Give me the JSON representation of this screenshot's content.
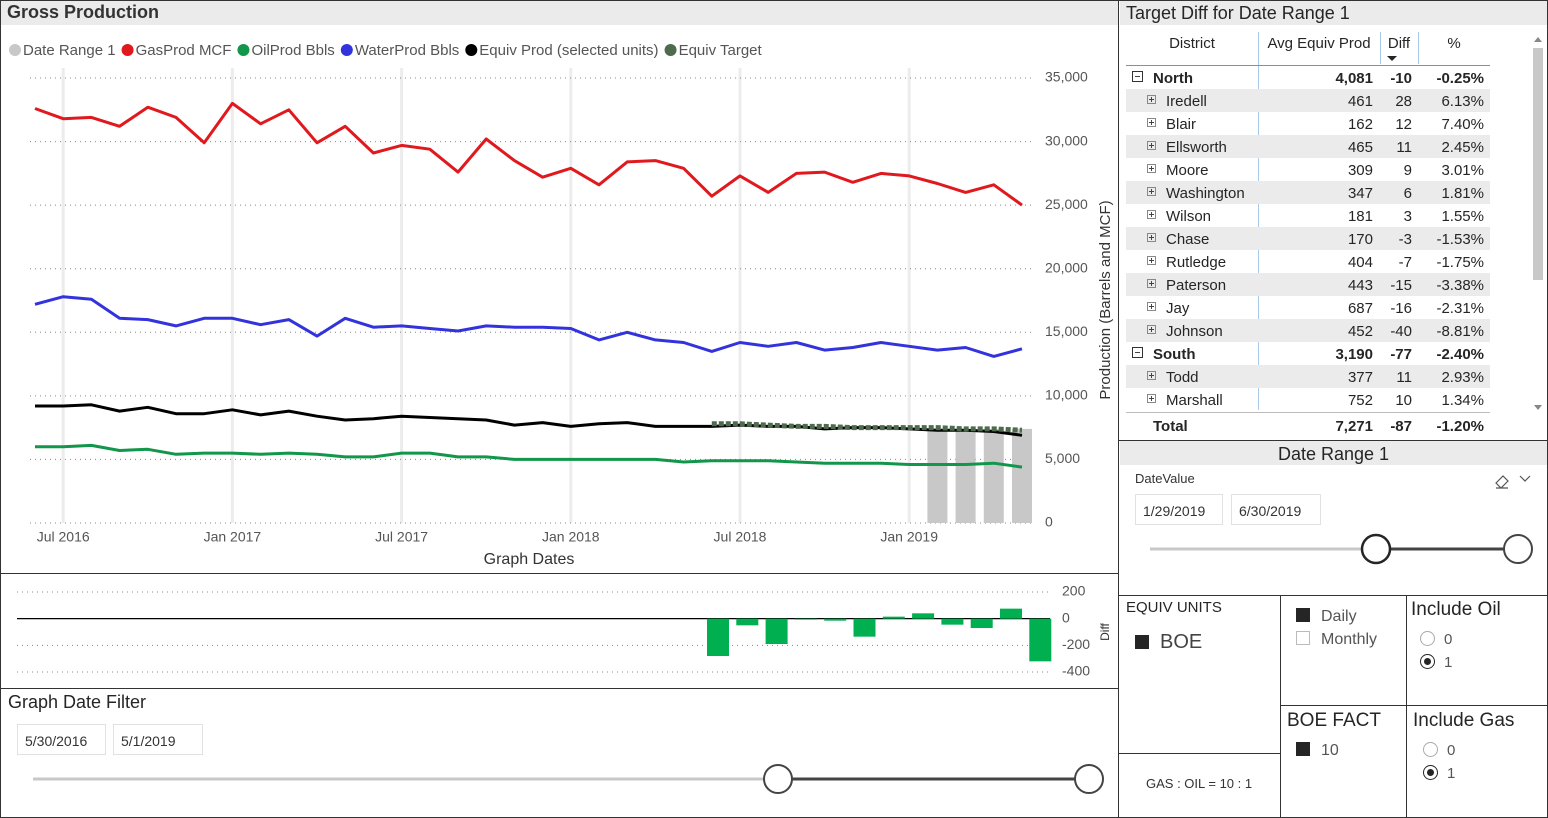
{
  "chart_data": [
    {
      "type": "line",
      "title": "Gross Production",
      "x": [
        "2016-06",
        "2016-07",
        "2016-08",
        "2016-09",
        "2016-10",
        "2016-11",
        "2016-12",
        "2017-01",
        "2017-02",
        "2017-03",
        "2017-04",
        "2017-05",
        "2017-06",
        "2017-07",
        "2017-08",
        "2017-09",
        "2017-10",
        "2017-11",
        "2017-12",
        "2018-01",
        "2018-02",
        "2018-03",
        "2018-04",
        "2018-05",
        "2018-06",
        "2018-07",
        "2018-08",
        "2018-09",
        "2018-10",
        "2018-11",
        "2018-12",
        "2019-01",
        "2019-02",
        "2019-03",
        "2019-04",
        "2019-05"
      ],
      "xticks": [
        {
          "value": "2016-07",
          "label": "Jul 2016"
        },
        {
          "value": "2017-01",
          "label": "Jan 2017"
        },
        {
          "value": "2017-07",
          "label": "Jul 2017"
        },
        {
          "value": "2018-01",
          "label": "Jan 2018"
        },
        {
          "value": "2018-07",
          "label": "Jul 2018"
        },
        {
          "value": "2019-01",
          "label": "Jan 2019"
        }
      ],
      "xlabel": "Graph Dates",
      "ylabel": "Production (Barrels and MCF)",
      "ylim": [
        0,
        35000
      ],
      "yticks": [
        0,
        {
          "value": 5000,
          "label": "5,000"
        },
        {
          "value": 10000,
          "label": "10,000"
        },
        {
          "value": 15000,
          "label": "15,000"
        },
        {
          "value": 20000,
          "label": "20,000"
        },
        {
          "value": 25000,
          "label": "25,000"
        },
        {
          "value": 30000,
          "label": "30,000"
        },
        {
          "value": 35000,
          "label": "35,000"
        }
      ],
      "grid": true,
      "legend": "top-left",
      "series": [
        {
          "name": "Date Range 1",
          "color": "#c8c8c8",
          "type": "bar",
          "values": [
            null,
            null,
            null,
            null,
            null,
            null,
            null,
            null,
            null,
            null,
            null,
            null,
            null,
            null,
            null,
            null,
            null,
            null,
            null,
            null,
            null,
            null,
            null,
            null,
            null,
            null,
            null,
            null,
            null,
            null,
            null,
            null,
            7400,
            7400,
            7400,
            7400
          ]
        },
        {
          "name": "GasProd MCF",
          "color": "#e0191f",
          "type": "line",
          "values": [
            32600,
            31800,
            31900,
            31200,
            32700,
            31900,
            29900,
            33000,
            31400,
            32500,
            29900,
            31200,
            29100,
            29700,
            29400,
            27600,
            30200,
            28500,
            27200,
            27900,
            26600,
            28400,
            28500,
            27900,
            25700,
            27300,
            26000,
            27500,
            27600,
            26800,
            27500,
            27300,
            26700,
            26000,
            26600,
            25000
          ]
        },
        {
          "name": "OilProd Bbls",
          "color": "#12964a",
          "type": "line",
          "values": [
            6000,
            6000,
            6100,
            5700,
            5800,
            5400,
            5500,
            5500,
            5400,
            5500,
            5400,
            5200,
            5200,
            5500,
            5500,
            5200,
            5200,
            5000,
            5000,
            5000,
            5000,
            5000,
            5000,
            4800,
            4900,
            4900,
            4900,
            4800,
            4700,
            4700,
            4700,
            4600,
            4600,
            4600,
            4700,
            4400
          ]
        },
        {
          "name": "WaterProd Bbls",
          "color": "#3333dd",
          "type": "line",
          "values": [
            17200,
            17800,
            17600,
            16100,
            16000,
            15500,
            16100,
            16100,
            15600,
            16000,
            14700,
            16100,
            15400,
            15500,
            15300,
            15100,
            15500,
            15400,
            15400,
            15300,
            14400,
            15000,
            14400,
            14200,
            13500,
            14200,
            13900,
            14200,
            13600,
            13800,
            14200,
            13900,
            13600,
            13800,
            13100,
            13700
          ]
        },
        {
          "name": "Equiv Prod (selected units)",
          "color": "#000000",
          "type": "line",
          "values": [
            9200,
            9200,
            9300,
            8800,
            9100,
            8600,
            8600,
            8900,
            8500,
            8800,
            8400,
            8100,
            8200,
            8400,
            8300,
            8200,
            8100,
            7700,
            7900,
            7600,
            7800,
            7900,
            7600,
            7600,
            7600,
            7700,
            7600,
            7600,
            7400,
            7500,
            7500,
            7400,
            7300,
            7300,
            7200,
            6900
          ]
        },
        {
          "name": "Equiv Target",
          "color": "#4e6b4e",
          "type": "line",
          "line_style": "dotted",
          "values": [
            null,
            null,
            null,
            null,
            null,
            null,
            null,
            null,
            null,
            null,
            null,
            null,
            null,
            null,
            null,
            null,
            null,
            null,
            null,
            null,
            null,
            null,
            null,
            null,
            7800,
            7800,
            7700,
            7600,
            7600,
            7500,
            7500,
            7500,
            7500,
            7400,
            7400,
            7300
          ]
        }
      ]
    },
    {
      "type": "bar",
      "ylabel": "Diff",
      "color": "#00b050",
      "ylim": [
        -450,
        250
      ],
      "yticks": [
        -400,
        -200,
        0,
        200
      ],
      "grid": true,
      "values": [
        null,
        null,
        null,
        null,
        null,
        null,
        null,
        null,
        null,
        null,
        null,
        null,
        null,
        null,
        null,
        null,
        null,
        null,
        null,
        null,
        null,
        null,
        null,
        null,
        -280,
        -50,
        -190,
        -5,
        -15,
        -135,
        15,
        40,
        -45,
        -70,
        75,
        -320
      ]
    }
  ],
  "table": {
    "title": "Target Diff for Date Range 1",
    "columns": [
      "District",
      "Avg Equiv Prod",
      "Diff",
      "%"
    ],
    "groups": [
      {
        "row": [
          "North",
          "4,081",
          "-10",
          "-0.25%"
        ],
        "children": [
          [
            "Iredell",
            "461",
            "28",
            "6.13%"
          ],
          [
            "Blair",
            "162",
            "12",
            "7.40%"
          ],
          [
            "Ellsworth",
            "465",
            "11",
            "2.45%"
          ],
          [
            "Moore",
            "309",
            "9",
            "3.01%"
          ],
          [
            "Washington",
            "347",
            "6",
            "1.81%"
          ],
          [
            "Wilson",
            "181",
            "3",
            "1.55%"
          ],
          [
            "Chase",
            "170",
            "-3",
            "-1.53%"
          ],
          [
            "Rutledge",
            "404",
            "-7",
            "-1.75%"
          ],
          [
            "Paterson",
            "443",
            "-15",
            "-3.38%"
          ],
          [
            "Jay",
            "687",
            "-16",
            "-2.31%"
          ],
          [
            "Johnson",
            "452",
            "-40",
            "-8.81%"
          ]
        ]
      },
      {
        "row": [
          "South",
          "3,190",
          "-77",
          "-2.40%"
        ],
        "children": [
          [
            "Todd",
            "377",
            "11",
            "2.93%"
          ],
          [
            "Marshall",
            "752",
            "10",
            "1.34%"
          ]
        ]
      }
    ],
    "total": [
      "Total",
      "7,271",
      "-87",
      "-1.20%"
    ]
  },
  "date_range_slicer": {
    "title": "Date Range 1",
    "field": "DateValue",
    "start": "1/29/2019",
    "end": "6/30/2019"
  },
  "graph_date_filter": {
    "title": "Graph Date Filter",
    "start": "5/30/2016",
    "end": "5/1/2019"
  },
  "equiv_units": {
    "title": "EQUIV UNITS",
    "options": [
      "BOE"
    ],
    "selected_index": 0
  },
  "period": {
    "options": [
      "Daily",
      "Monthly"
    ],
    "selected_index": 0
  },
  "include_oil": {
    "title": "Include Oil",
    "options": [
      "0",
      "1"
    ],
    "selected_index": 1
  },
  "boe_fact": {
    "title": "BOE FACT",
    "options": [
      "10"
    ],
    "selected_index": 0
  },
  "include_gas": {
    "title": "Include Gas",
    "options": [
      "0",
      "1"
    ],
    "selected_index": 1
  },
  "ratio_note": "GAS : OIL = 10 : 1"
}
